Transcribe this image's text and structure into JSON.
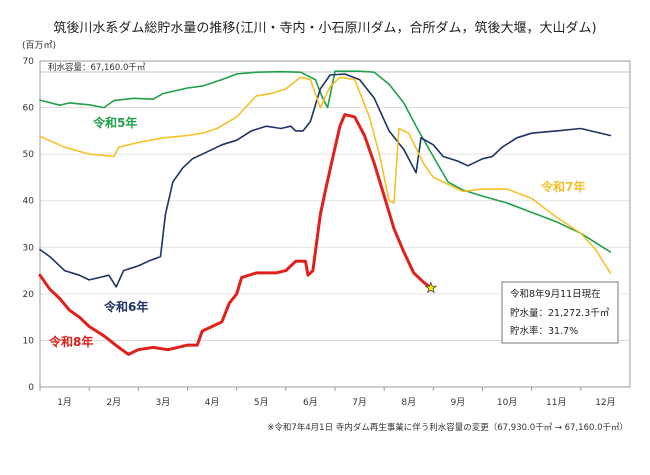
{
  "chart_data": {
    "type": "line",
    "title": "筑後川水系ダム総貯水量の推移(江川・寺内・小石原川ダム，合所ダム，筑後大堰，大山ダム)",
    "ylabel": "(百万㎥)",
    "ylim": [
      0,
      70
    ],
    "yticks": [
      0,
      10,
      20,
      30,
      40,
      50,
      60,
      70
    ],
    "xlim": [
      1,
      13
    ],
    "xticks": [
      "1月",
      "2月",
      "3月",
      "4月",
      "5月",
      "6月",
      "7月",
      "8月",
      "9月",
      "10月",
      "11月",
      "12月"
    ],
    "grid": "horizontal",
    "capacity_note": "利水容量：67,160.0千㎥",
    "footnote": "※令和7年4月1日 寺内ダム再生事業に伴う利水容量の変更（67,930.0千㎥ → 67,160.0千㎥）",
    "series": [
      {
        "name": "令和5年",
        "color": "#21a04a",
        "width": 1.6,
        "points": [
          [
            1,
            61.6
          ],
          [
            1.4,
            60.5
          ],
          [
            1.6,
            61.0
          ],
          [
            2,
            60.6
          ],
          [
            2.3,
            60.0
          ],
          [
            2.5,
            61.5
          ],
          [
            2.9,
            62.0
          ],
          [
            3.3,
            61.8
          ],
          [
            3.5,
            63.0
          ],
          [
            4,
            64.2
          ],
          [
            4.3,
            64.6
          ],
          [
            4.7,
            66.0
          ],
          [
            5,
            67.2
          ],
          [
            5.4,
            67.6
          ],
          [
            5.9,
            67.7
          ],
          [
            6.3,
            67.6
          ],
          [
            6.6,
            66.0
          ],
          [
            6.75,
            62.0
          ],
          [
            6.85,
            60.0
          ],
          [
            7,
            67.8
          ],
          [
            7.5,
            67.8
          ],
          [
            7.8,
            67.6
          ],
          [
            8.1,
            65.0
          ],
          [
            8.4,
            61.0
          ],
          [
            8.7,
            55.0
          ],
          [
            9,
            49.5
          ],
          [
            9.3,
            44.0
          ],
          [
            9.6,
            42.3
          ],
          [
            10,
            41.0
          ],
          [
            10.5,
            39.5
          ],
          [
            11,
            37.5
          ],
          [
            11.5,
            35.5
          ],
          [
            12,
            33.0
          ],
          [
            12.6,
            29.0
          ]
        ]
      },
      {
        "name": "令和6年",
        "color": "#1f3264",
        "width": 1.6,
        "points": [
          [
            1,
            29.5
          ],
          [
            1.2,
            28.0
          ],
          [
            1.5,
            25.0
          ],
          [
            1.8,
            24.0
          ],
          [
            2,
            23.0
          ],
          [
            2.2,
            23.5
          ],
          [
            2.4,
            24.0
          ],
          [
            2.55,
            21.5
          ],
          [
            2.7,
            25.0
          ],
          [
            3,
            26.0
          ],
          [
            3.2,
            27.0
          ],
          [
            3.45,
            28.0
          ],
          [
            3.55,
            37.0
          ],
          [
            3.7,
            44.0
          ],
          [
            3.9,
            47.0
          ],
          [
            4.1,
            49.0
          ],
          [
            4.4,
            50.5
          ],
          [
            4.7,
            52.0
          ],
          [
            5,
            53.0
          ],
          [
            5.3,
            55.0
          ],
          [
            5.6,
            56.0
          ],
          [
            5.9,
            55.5
          ],
          [
            6.1,
            56.0
          ],
          [
            6.2,
            55.0
          ],
          [
            6.35,
            55.0
          ],
          [
            6.5,
            57.0
          ],
          [
            6.7,
            64.0
          ],
          [
            6.9,
            67.0
          ],
          [
            7.2,
            67.2
          ],
          [
            7.5,
            66.0
          ],
          [
            7.8,
            62.0
          ],
          [
            8.1,
            55.0
          ],
          [
            8.4,
            51.0
          ],
          [
            8.65,
            46.0
          ],
          [
            8.75,
            53.5
          ],
          [
            9.0,
            52.0
          ],
          [
            9.2,
            49.5
          ],
          [
            9.5,
            48.5
          ],
          [
            9.7,
            47.5
          ],
          [
            10,
            49.0
          ],
          [
            10.2,
            49.5
          ],
          [
            10.4,
            51.5
          ],
          [
            10.7,
            53.5
          ],
          [
            11,
            54.5
          ],
          [
            11.5,
            55.0
          ],
          [
            12,
            55.5
          ],
          [
            12.6,
            54.0
          ]
        ]
      },
      {
        "name": "令和7年",
        "color": "#f5c02a",
        "width": 1.6,
        "points": [
          [
            1,
            53.8
          ],
          [
            1.5,
            51.5
          ],
          [
            2,
            50.0
          ],
          [
            2.5,
            49.5
          ],
          [
            2.6,
            51.5
          ],
          [
            3,
            52.5
          ],
          [
            3.5,
            53.5
          ],
          [
            4,
            54.0
          ],
          [
            4.3,
            54.5
          ],
          [
            4.6,
            55.5
          ],
          [
            5,
            58.0
          ],
          [
            5.4,
            62.5
          ],
          [
            5.7,
            63.0
          ],
          [
            6,
            64.0
          ],
          [
            6.3,
            66.5
          ],
          [
            6.5,
            66.0
          ],
          [
            6.7,
            60.0
          ],
          [
            6.9,
            64.5
          ],
          [
            7.1,
            66.5
          ],
          [
            7.4,
            66.0
          ],
          [
            7.7,
            58.0
          ],
          [
            7.9,
            50.0
          ],
          [
            8.1,
            40.0
          ],
          [
            8.2,
            39.5
          ],
          [
            8.3,
            55.5
          ],
          [
            8.5,
            54.5
          ],
          [
            8.8,
            48.0
          ],
          [
            9.0,
            45.0
          ],
          [
            9.3,
            43.5
          ],
          [
            9.6,
            42.0
          ],
          [
            10,
            42.5
          ],
          [
            10.5,
            42.5
          ],
          [
            11,
            40.5
          ],
          [
            11.5,
            36.5
          ],
          [
            12,
            33.0
          ],
          [
            12.3,
            29.5
          ],
          [
            12.6,
            24.5
          ]
        ]
      },
      {
        "name": "令和8年",
        "color": "#e0201b",
        "width": 3,
        "points": [
          [
            1,
            24.0
          ],
          [
            1.2,
            21.0
          ],
          [
            1.4,
            19.0
          ],
          [
            1.6,
            16.5
          ],
          [
            1.8,
            15.0
          ],
          [
            2,
            13.0
          ],
          [
            2.3,
            11.0
          ],
          [
            2.6,
            8.5
          ],
          [
            2.8,
            7.0
          ],
          [
            3,
            8.0
          ],
          [
            3.3,
            8.5
          ],
          [
            3.6,
            8.0
          ],
          [
            3.8,
            8.5
          ],
          [
            4.0,
            9.0
          ],
          [
            4.2,
            9.0
          ],
          [
            4.3,
            12.0
          ],
          [
            4.5,
            13.0
          ],
          [
            4.7,
            14.0
          ],
          [
            4.85,
            18.0
          ],
          [
            5.0,
            20.0
          ],
          [
            5.1,
            23.5
          ],
          [
            5.4,
            24.5
          ],
          [
            5.8,
            24.5
          ],
          [
            6.0,
            25.0
          ],
          [
            6.2,
            27.0
          ],
          [
            6.4,
            27.0
          ],
          [
            6.45,
            24.0
          ],
          [
            6.55,
            25.0
          ],
          [
            6.7,
            37.0
          ],
          [
            6.8,
            42.0
          ],
          [
            6.95,
            49.0
          ],
          [
            7.1,
            56.0
          ],
          [
            7.2,
            58.5
          ],
          [
            7.4,
            58.0
          ],
          [
            7.6,
            54.0
          ],
          [
            7.8,
            48.0
          ],
          [
            8,
            41.0
          ],
          [
            8.2,
            34.0
          ],
          [
            8.4,
            29.0
          ],
          [
            8.6,
            24.5
          ],
          [
            8.8,
            22.5
          ],
          [
            8.95,
            21.3
          ]
        ]
      }
    ],
    "labels": {
      "r5": "令和5年",
      "r6": "令和6年",
      "r7": "令和7年",
      "r8": "令和8年"
    },
    "current_marker": {
      "x": 8.95,
      "y": 21.272
    },
    "info_box": {
      "date": "令和8年9月11日現在",
      "storage": "貯水量：21,272.3千㎥",
      "rate": "貯水率：31.7%"
    }
  }
}
